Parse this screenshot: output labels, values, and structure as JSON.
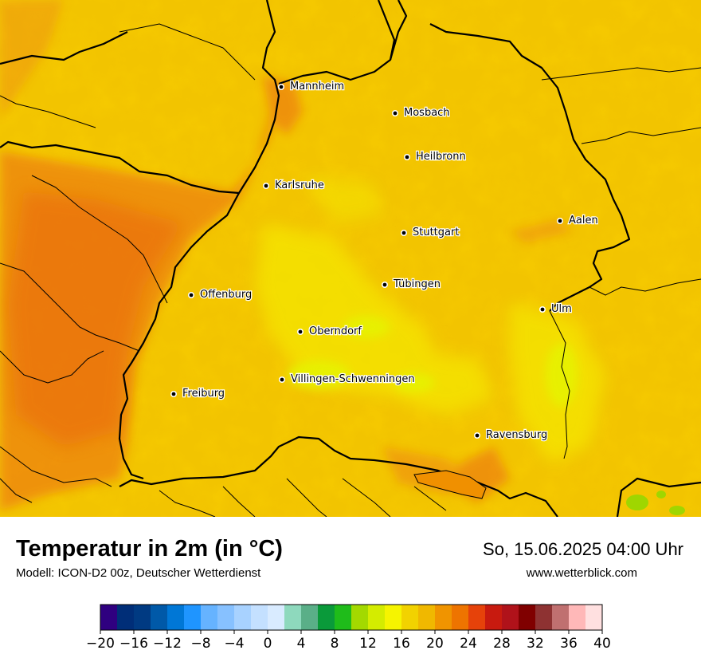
{
  "header": {
    "title": "Temperatur in 2m (in °C)",
    "model": "Modell: ICON-D2 00z, Deutscher Wetterdienst",
    "datetime": "So, 15.06.2025 04:00 Uhr",
    "site": "www.wetterblick.com"
  },
  "cities": [
    {
      "name": "Mannheim",
      "key": "mannheim"
    },
    {
      "name": "Mosbach",
      "key": "mosbach"
    },
    {
      "name": "Heilbronn",
      "key": "heilbronn"
    },
    {
      "name": "Karlsruhe",
      "key": "karlsruhe"
    },
    {
      "name": "Aalen",
      "key": "aalen"
    },
    {
      "name": "Stuttgart",
      "key": "stuttgart"
    },
    {
      "name": "Tübingen",
      "key": "tuebingen"
    },
    {
      "name": "Offenburg",
      "key": "offenburg"
    },
    {
      "name": "Ulm",
      "key": "ulm"
    },
    {
      "name": "Oberndorf",
      "key": "oberndorf"
    },
    {
      "name": "Villingen-Schwenningen",
      "key": "villingen"
    },
    {
      "name": "Freiburg",
      "key": "freiburg"
    },
    {
      "name": "Ravensburg",
      "key": "ravensburg"
    }
  ],
  "legend": {
    "min": -20,
    "max": 40,
    "step": 2,
    "colors": [
      "#2f0080",
      "#002e78",
      "#003a82",
      "#0059a8",
      "#0077d6",
      "#1f95ff",
      "#66b3ff",
      "#87c1ff",
      "#a8d2ff",
      "#c4e0ff",
      "#d9ebff",
      "#8ed9bd",
      "#5aaf88",
      "#0a9a3a",
      "#1fbc1a",
      "#a3d900",
      "#d4ec00",
      "#f6f400",
      "#f2d200",
      "#f0b800",
      "#f09400",
      "#ee7400",
      "#e6420a",
      "#c81a0f",
      "#b0121a",
      "#800000",
      "#8e3232",
      "#c07070",
      "#ffb8b8",
      "#ffe0e0"
    ],
    "ticks": [
      "−20",
      "−16",
      "−12",
      "−8",
      "−4",
      "0",
      "4",
      "8",
      "12",
      "16",
      "20",
      "24",
      "28",
      "32",
      "36",
      "40"
    ]
  }
}
